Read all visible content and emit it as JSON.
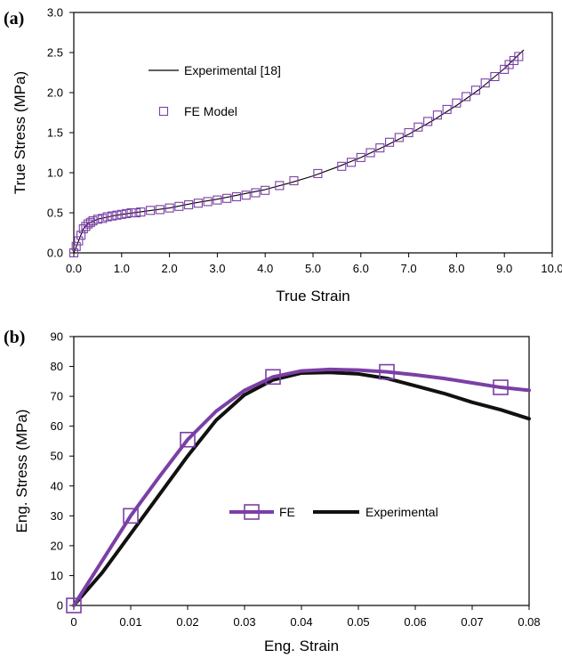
{
  "chart_data": [
    {
      "id": "a",
      "panel_label": "(a)",
      "type": "line",
      "xlabel": "True Strain",
      "ylabel": "True Stress (MPa)",
      "xlim": [
        0,
        10
      ],
      "ylim": [
        0,
        3
      ],
      "xticks": [
        "0.0",
        "1.0",
        "2.0",
        "3.0",
        "4.0",
        "5.0",
        "6.0",
        "7.0",
        "8.0",
        "9.0",
        "10.0"
      ],
      "yticks": [
        "0.0",
        "0.5",
        "1.0",
        "1.5",
        "2.0",
        "2.5",
        "3.0"
      ],
      "grid": false,
      "legend_position": "upper-left",
      "colors": {
        "experimental": "#000000",
        "fe": "#7b3fa6"
      },
      "series": [
        {
          "name": "Experimental [18]",
          "style": "line",
          "x": [
            0.0,
            0.1,
            0.2,
            0.3,
            0.5,
            0.8,
            1.0,
            1.5,
            2.0,
            2.5,
            3.0,
            3.5,
            4.0,
            4.5,
            5.0,
            5.5,
            6.0,
            6.5,
            7.0,
            7.5,
            8.0,
            8.5,
            9.0,
            9.4
          ],
          "y": [
            0.0,
            0.15,
            0.3,
            0.37,
            0.42,
            0.46,
            0.48,
            0.52,
            0.56,
            0.62,
            0.67,
            0.73,
            0.79,
            0.87,
            0.96,
            1.07,
            1.19,
            1.33,
            1.48,
            1.65,
            1.84,
            2.05,
            2.3,
            2.53
          ]
        },
        {
          "name": "FE Model",
          "style": "markers",
          "marker": "open-square",
          "x": [
            0.0,
            0.05,
            0.1,
            0.15,
            0.2,
            0.25,
            0.3,
            0.35,
            0.4,
            0.5,
            0.6,
            0.7,
            0.8,
            0.9,
            1.0,
            1.1,
            1.2,
            1.3,
            1.4,
            1.6,
            1.8,
            2.0,
            2.2,
            2.4,
            2.6,
            2.8,
            3.0,
            3.2,
            3.4,
            3.6,
            3.8,
            4.0,
            4.3,
            4.6,
            5.1,
            5.6,
            5.8,
            6.0,
            6.2,
            6.4,
            6.6,
            6.8,
            7.0,
            7.2,
            7.4,
            7.6,
            7.8,
            8.0,
            8.2,
            8.4,
            8.6,
            8.8,
            9.0,
            9.1,
            9.2,
            9.3
          ],
          "y": [
            0.0,
            0.08,
            0.15,
            0.22,
            0.3,
            0.33,
            0.36,
            0.38,
            0.4,
            0.42,
            0.43,
            0.45,
            0.46,
            0.47,
            0.48,
            0.49,
            0.5,
            0.5,
            0.51,
            0.53,
            0.54,
            0.56,
            0.58,
            0.6,
            0.62,
            0.64,
            0.66,
            0.68,
            0.7,
            0.72,
            0.75,
            0.78,
            0.84,
            0.9,
            0.99,
            1.08,
            1.13,
            1.19,
            1.25,
            1.31,
            1.38,
            1.44,
            1.5,
            1.57,
            1.64,
            1.72,
            1.79,
            1.87,
            1.95,
            2.03,
            2.12,
            2.2,
            2.29,
            2.35,
            2.4,
            2.45
          ]
        }
      ]
    },
    {
      "id": "b",
      "panel_label": "(b)",
      "type": "line",
      "xlabel": "Eng. Strain",
      "ylabel": "Eng. Stress (MPa)",
      "xlim": [
        0,
        0.08
      ],
      "ylim": [
        0,
        90
      ],
      "xticks": [
        "0",
        "0.01",
        "0.02",
        "0.03",
        "0.04",
        "0.05",
        "0.06",
        "0.07",
        "0.08"
      ],
      "yticks": [
        "0",
        "10",
        "20",
        "30",
        "40",
        "50",
        "60",
        "70",
        "80",
        "90"
      ],
      "grid": false,
      "legend_position": "center",
      "colors": {
        "fe": "#7b3fa6",
        "experimental": "#111111"
      },
      "series": [
        {
          "name": "FE",
          "style": "line-markers",
          "marker": "open-square",
          "x": [
            0,
            0.005,
            0.01,
            0.015,
            0.02,
            0.025,
            0.03,
            0.035,
            0.04,
            0.045,
            0.05,
            0.055,
            0.06,
            0.065,
            0.07,
            0.075,
            0.08
          ],
          "y": [
            0,
            15,
            30,
            43,
            55.5,
            65,
            72,
            76.5,
            78.5,
            79,
            78.8,
            78.2,
            77.2,
            76,
            74.5,
            73,
            72
          ],
          "marker_x": [
            0,
            0.01,
            0.02,
            0.035,
            0.055,
            0.075
          ],
          "marker_y": [
            0,
            30,
            55.5,
            76.5,
            78.2,
            73
          ]
        },
        {
          "name": "Experimental",
          "style": "line",
          "x": [
            0,
            0.005,
            0.01,
            0.015,
            0.02,
            0.025,
            0.03,
            0.035,
            0.04,
            0.045,
            0.05,
            0.055,
            0.06,
            0.065,
            0.07,
            0.075,
            0.08
          ],
          "y": [
            0,
            11,
            24,
            37,
            50,
            62,
            70.5,
            75.5,
            77.8,
            78,
            77.5,
            76,
            73.5,
            71,
            68,
            65.5,
            62.5
          ]
        }
      ]
    }
  ]
}
